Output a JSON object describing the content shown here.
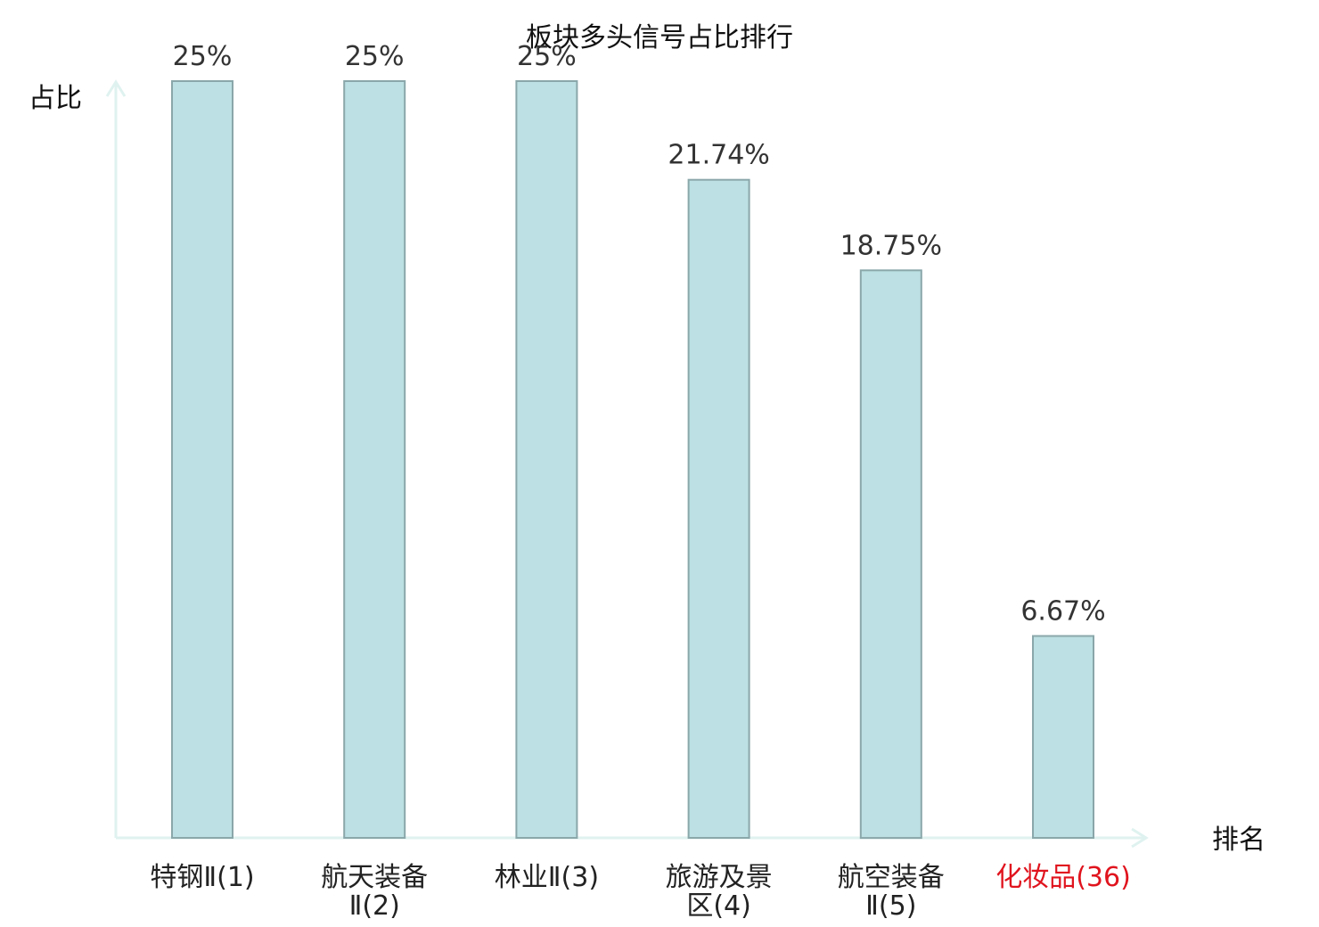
{
  "chart_data": {
    "type": "bar",
    "title": "板块多头信号占比排行",
    "xlabel": "排名",
    "ylabel": "占比",
    "ylim": [
      0,
      25
    ],
    "grid": false,
    "legend": "none",
    "categories": [
      [
        "特钢Ⅱ(1)"
      ],
      [
        "航天装备",
        "Ⅱ(2)"
      ],
      [
        "林业Ⅱ(3)"
      ],
      [
        "旅游及景",
        "区(4)"
      ],
      [
        "航空装备",
        "Ⅱ(5)"
      ],
      [
        "化妆品(36)"
      ]
    ],
    "values": [
      25,
      25,
      25,
      21.74,
      18.75,
      6.67
    ],
    "value_labels": [
      "25%",
      "25%",
      "25%",
      "21.74%",
      "18.75%",
      "6.67%"
    ],
    "highlight_index": 5,
    "colors": {
      "bar_fill": "#bce0e3",
      "bar_stroke": "#8aa7aa",
      "axis": "#dff2ef",
      "highlight_label": "#e0141e",
      "tick_label": "#222222",
      "data_label": "#333333"
    }
  }
}
